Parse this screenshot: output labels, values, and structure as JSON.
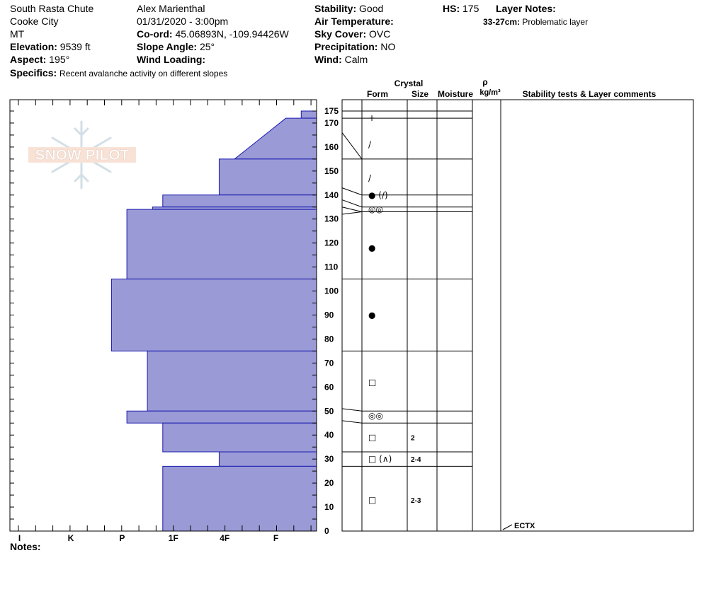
{
  "header": {
    "location": "South Rasta Chute",
    "area": "Cooke City",
    "state": "MT",
    "elevation_label": "Elevation:",
    "elevation": "9539 ft",
    "aspect_label": "Aspect:",
    "aspect": "195°",
    "specifics_label": "Specifics:",
    "specifics": "Recent avalanche activity on different slopes",
    "observer": "Alex Marienthal",
    "datetime": "01/31/2020 - 3:00pm",
    "coord_label": "Co-ord:",
    "coord": "45.06893N, -109.94426W",
    "slope_label": "Slope Angle:",
    "slope": "25°",
    "wind_loading_label": "Wind Loading:",
    "wind_loading": "",
    "stability_label": "Stability:",
    "stability": "Good",
    "air_temp_label": "Air Temperature:",
    "air_temp": "",
    "sky_label": "Sky Cover:",
    "sky": "OVC",
    "precip_label": "Precipitation:",
    "precip": "NO",
    "wind_label": "Wind:",
    "wind": "Calm",
    "hs_label": "HS:",
    "hs": "175",
    "layer_notes_label": "Layer Notes:",
    "layer_note_range": "33-27cm:",
    "layer_note_text": "Problematic layer"
  },
  "logo": {
    "text": "SNOW PILOT"
  },
  "notes_label": "Notes:",
  "columns": {
    "crystal": "Crystal",
    "form": "Form",
    "size": "Size",
    "moisture": "Moisture",
    "rho": "ρ",
    "density_unit": "kg/m³",
    "stability": "Stability tests & Layer comments"
  },
  "colors": {
    "profile_fill": "#9a9ad6",
    "profile_stroke": "#1a1ab0"
  },
  "chart_data": {
    "type": "area",
    "ylabel": "",
    "ylim": [
      0,
      175
    ],
    "y_ticks": [
      0,
      10,
      20,
      30,
      40,
      50,
      60,
      70,
      80,
      90,
      100,
      110,
      120,
      130,
      140,
      150,
      160,
      170,
      175
    ],
    "hardness_scale": [
      "I",
      "K",
      "P",
      "1F",
      "4F",
      "F"
    ],
    "hardness_values": [
      6,
      5,
      4,
      3,
      2,
      1
    ],
    "layers": [
      {
        "top": 175,
        "bottom": 172,
        "hardness": 0.3
      },
      {
        "top": 172,
        "bottom": 155,
        "hardness_top": 0.6,
        "hardness_bottom": 1.6
      },
      {
        "top": 155,
        "bottom": 140,
        "hardness": 1.9
      },
      {
        "top": 140,
        "bottom": 135,
        "hardness": 3.0
      },
      {
        "top": 135,
        "bottom": 134,
        "hardness": 3.2
      },
      {
        "top": 134,
        "bottom": 105,
        "hardness": 3.7
      },
      {
        "top": 105,
        "bottom": 75,
        "hardness": 4.0
      },
      {
        "top": 75,
        "bottom": 50,
        "hardness": 3.3
      },
      {
        "top": 50,
        "bottom": 45,
        "hardness": 3.7
      },
      {
        "top": 45,
        "bottom": 33,
        "hardness": 3.0
      },
      {
        "top": 33,
        "bottom": 27,
        "hardness": 1.9
      },
      {
        "top": 27,
        "bottom": 0,
        "hardness": 3.0
      }
    ],
    "right_boundaries": [
      175,
      172,
      155,
      140,
      135,
      133,
      105,
      75,
      50,
      45,
      33,
      27,
      0
    ],
    "left_boundaries": [
      175,
      172,
      166,
      155,
      143,
      138,
      135,
      132,
      105,
      75,
      51,
      46,
      33,
      27,
      0
    ],
    "crystals": [
      {
        "y": 172,
        "form": "+",
        "size": ""
      },
      {
        "y": 161,
        "form": "/",
        "size": ""
      },
      {
        "y": 147,
        "form": "/",
        "size": ""
      },
      {
        "y": 140,
        "form": "● (/)",
        "size": ""
      },
      {
        "y": 134,
        "form": "◎◎",
        "size": ""
      },
      {
        "y": 118,
        "form": "●",
        "size": ""
      },
      {
        "y": 90,
        "form": "●",
        "size": ""
      },
      {
        "y": 62,
        "form": "□",
        "size": ""
      },
      {
        "y": 48,
        "form": "◎◎",
        "size": ""
      },
      {
        "y": 39,
        "form": "□",
        "size": "2"
      },
      {
        "y": 30,
        "form": "□ (∧)",
        "size": "2-4"
      },
      {
        "y": 13,
        "form": "□",
        "size": "2-3"
      }
    ],
    "stability_tests": [
      {
        "y": 0,
        "text": "ECTX"
      }
    ]
  }
}
